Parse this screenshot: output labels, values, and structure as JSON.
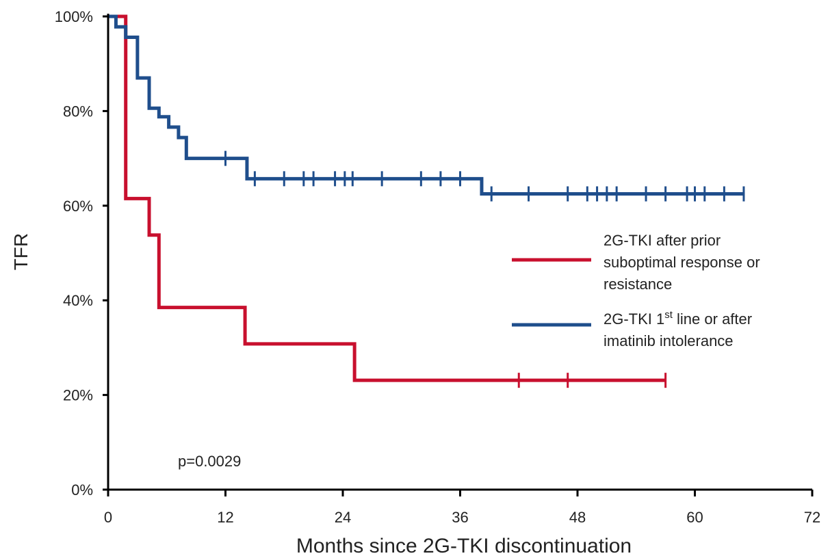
{
  "chart_data": {
    "type": "line",
    "step": true,
    "xlabel": "Months since 2G-TKI discontinuation",
    "ylabel": "TFR",
    "xlim": [
      0,
      72
    ],
    "ylim": [
      0,
      100
    ],
    "xticks": [
      0,
      12,
      24,
      36,
      48,
      60,
      72
    ],
    "yticks": [
      0,
      20,
      40,
      60,
      80,
      100
    ],
    "ytick_labels": [
      "0%",
      "20%",
      "40%",
      "60%",
      "80%",
      "100%"
    ],
    "grid": false,
    "legend_position": "right",
    "annotation": "p=0.0029",
    "series": [
      {
        "name": "2G-TKI after prior suboptimal response or resistance",
        "legend_lines": [
          "2G-TKI after prior",
          "suboptimal response or",
          "resistance"
        ],
        "color": "#c8102e",
        "steps": [
          [
            0,
            100
          ],
          [
            1.8,
            61.5
          ],
          [
            4.2,
            53.8
          ],
          [
            5.2,
            38.5
          ],
          [
            14,
            30.8
          ],
          [
            25.2,
            23.1
          ]
        ],
        "end_x": 57,
        "censors": [
          42,
          47,
          57
        ]
      },
      {
        "name": "2G-TKI 1st line or after imatinib intolerance",
        "legend_lines": [
          {
            "main": "2G-TKI 1",
            "sup": "st",
            "rest": " line or after"
          },
          "imatinib intolerance"
        ],
        "color": "#1f4e8c",
        "steps": [
          [
            0,
            100
          ],
          [
            0.8,
            97.8
          ],
          [
            1.8,
            95.6
          ],
          [
            3,
            87
          ],
          [
            4.2,
            80.6
          ],
          [
            5.2,
            78.8
          ],
          [
            6.2,
            76.6
          ],
          [
            7.2,
            74.4
          ],
          [
            8,
            70
          ],
          [
            14.2,
            65.7
          ],
          [
            38.2,
            62.5
          ]
        ],
        "end_x": 65,
        "censors": [
          12,
          15,
          18,
          20,
          21,
          23.2,
          24.2,
          25,
          28,
          32,
          34,
          36,
          39.2,
          43,
          47,
          49,
          50,
          51,
          52,
          55,
          57,
          59.2,
          60,
          61,
          63,
          65
        ]
      }
    ]
  }
}
